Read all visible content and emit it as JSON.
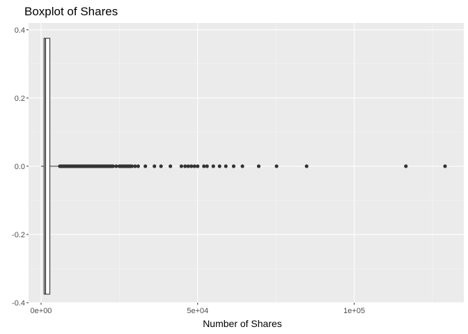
{
  "chart_data": {
    "type": "boxplot",
    "title": "Boxplot of Shares",
    "xlabel": "Number of Shares",
    "ylabel": "",
    "xlim": [
      -4000,
      135000
    ],
    "ylim": [
      -0.4,
      0.42
    ],
    "x_ticks": [
      0,
      50000,
      100000
    ],
    "x_tick_labels": [
      "0e+00",
      "5e+04",
      "1e+05"
    ],
    "y_ticks": [
      -0.4,
      -0.2,
      0.0,
      0.2,
      0.4
    ],
    "y_tick_labels": [
      "-0.4",
      "-0.2",
      "0.0",
      "0.2",
      "0.4"
    ],
    "grid": true,
    "box": {
      "y_center": 0,
      "y_extent": [
        -0.375,
        0.375
      ],
      "min": 1,
      "q1": 946,
      "median": 1400,
      "q3": 2800,
      "whisker_high": 5700
    },
    "outliers": [
      6000,
      6500,
      7000,
      7500,
      8000,
      8500,
      9000,
      9500,
      10000,
      10500,
      11000,
      11500,
      12000,
      12500,
      13000,
      13500,
      14000,
      14500,
      15000,
      15500,
      16000,
      16500,
      17000,
      17500,
      18000,
      18500,
      19000,
      19500,
      20000,
      20500,
      21000,
      21500,
      22000,
      22500,
      23000,
      24000,
      25000,
      25500,
      26000,
      26500,
      27000,
      27500,
      28000,
      28500,
      29000,
      30000,
      31000,
      33300,
      36200,
      38300,
      41300,
      44800,
      46000,
      47000,
      48000,
      49000,
      50000,
      52000,
      53000,
      55000,
      57000,
      59000,
      61500,
      64300,
      69500,
      75200,
      84800,
      116500,
      129000
    ],
    "colors": {
      "panel_background": "#ebebeb",
      "grid_major": "#ffffff",
      "grid_minor": "#f5f5f5",
      "box_outline": "#333333",
      "box_fill": "#ffffff",
      "points": "#333333"
    }
  }
}
